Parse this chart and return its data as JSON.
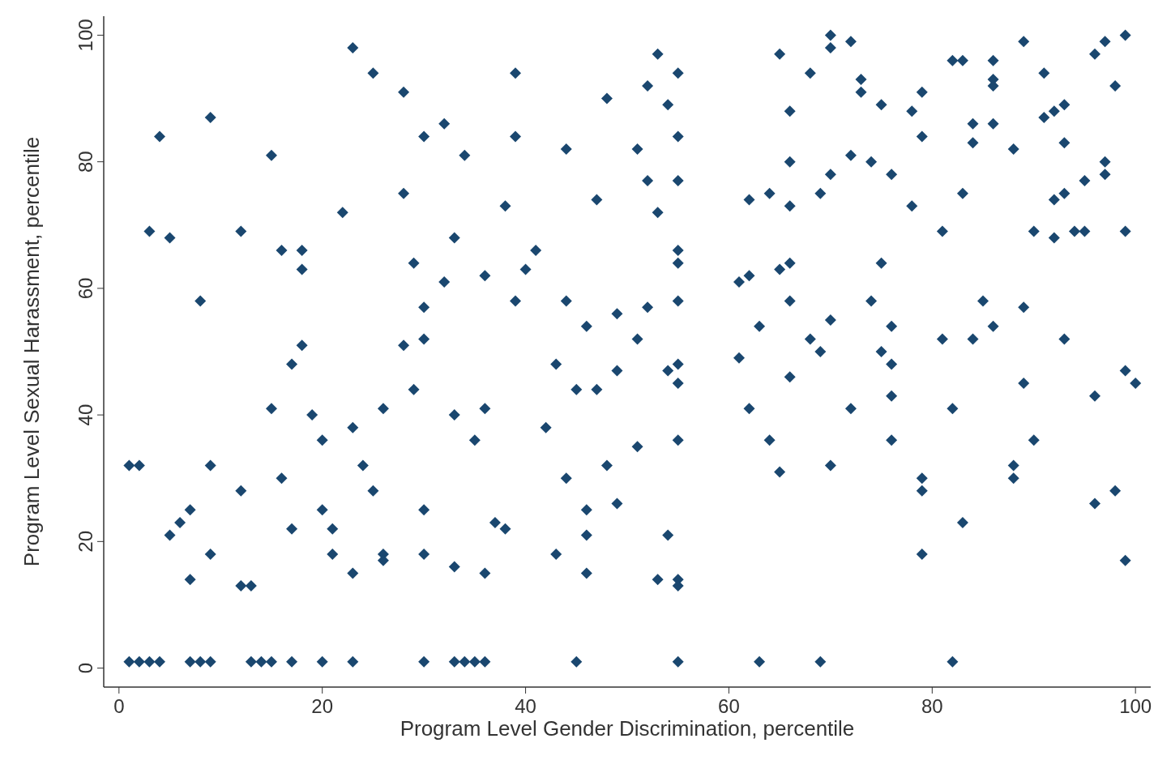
{
  "chart_data": {
    "type": "scatter",
    "xlabel": "Program Level Gender Discrimination, percentile",
    "ylabel": "Program Level Sexual Harassment, percentile",
    "xlim": [
      -1.5,
      101.5
    ],
    "ylim": [
      -3,
      103
    ],
    "xticks": [
      0,
      20,
      40,
      60,
      80,
      100
    ],
    "yticks": [
      0,
      20,
      40,
      60,
      80,
      100
    ],
    "grid": false,
    "marker": "diamond",
    "series": [
      {
        "color": "#1a476f",
        "x": [
          1,
          2,
          3,
          4,
          7,
          8,
          9,
          13,
          14,
          15,
          17,
          20,
          23,
          30,
          33,
          34,
          35,
          36,
          45,
          55,
          63,
          69,
          82,
          1,
          2,
          3,
          4,
          5,
          5,
          6,
          7,
          7,
          8,
          9,
          9,
          9,
          12,
          12,
          12,
          13,
          15,
          15,
          16,
          16,
          17,
          17,
          18,
          18,
          18,
          19,
          20,
          20,
          21,
          21,
          22,
          23,
          23,
          23,
          24,
          25,
          25,
          26,
          26,
          26,
          28,
          28,
          28,
          29,
          29,
          30,
          30,
          30,
          30,
          30,
          32,
          32,
          33,
          33,
          33,
          34,
          35,
          36,
          36,
          36,
          37,
          38,
          38,
          39,
          39,
          39,
          40,
          41,
          42,
          43,
          43,
          44,
          44,
          44,
          45,
          46,
          46,
          46,
          46,
          47,
          47,
          48,
          48,
          49,
          49,
          49,
          51,
          51,
          51,
          52,
          52,
          52,
          53,
          53,
          53,
          54,
          54,
          54,
          55,
          55,
          55,
          55,
          55,
          55,
          55,
          55,
          55,
          55,
          55,
          61,
          62,
          61,
          62,
          62,
          63,
          64,
          64,
          65,
          65,
          65,
          66,
          66,
          66,
          66,
          66,
          66,
          68,
          68,
          69,
          69,
          70,
          70,
          70,
          70,
          70,
          72,
          72,
          72,
          73,
          73,
          74,
          75,
          75,
          75,
          74,
          76,
          76,
          76,
          76,
          76,
          78,
          78,
          79,
          79,
          79,
          79,
          79,
          81,
          81,
          82,
          82,
          83,
          83,
          83,
          84,
          84,
          84,
          85,
          86,
          86,
          86,
          86,
          86,
          88,
          88,
          88,
          89,
          89,
          89,
          90,
          90,
          91,
          91,
          92,
          92,
          92,
          93,
          93,
          93,
          93,
          94,
          95,
          95,
          96,
          96,
          96,
          97,
          97,
          97,
          98,
          98,
          99,
          99,
          99,
          99,
          100
        ],
        "values": [
          1,
          1,
          1,
          1,
          1,
          1,
          1,
          1,
          1,
          1,
          1,
          1,
          1,
          1,
          1,
          1,
          1,
          1,
          1,
          1,
          1,
          1,
          1,
          32,
          32,
          69,
          84,
          21,
          68,
          23,
          25,
          14,
          58,
          87,
          32,
          18,
          28,
          69,
          13,
          13,
          81,
          41,
          30,
          66,
          48,
          22,
          66,
          63,
          51,
          40,
          36,
          25,
          22,
          18,
          72,
          98,
          38,
          15,
          32,
          94,
          28,
          41,
          18,
          17,
          91,
          75,
          51,
          64,
          44,
          84,
          57,
          52,
          25,
          18,
          86,
          61,
          68,
          40,
          16,
          81,
          36,
          62,
          41,
          15,
          23,
          22,
          73,
          94,
          84,
          58,
          63,
          66,
          38,
          48,
          18,
          82,
          58,
          30,
          44,
          54,
          25,
          21,
          15,
          74,
          44,
          90,
          32,
          56,
          47,
          26,
          82,
          52,
          35,
          92,
          77,
          57,
          97,
          72,
          14,
          89,
          47,
          21,
          94,
          84,
          77,
          66,
          64,
          58,
          48,
          45,
          36,
          14,
          13,
          61,
          62,
          49,
          41,
          74,
          54,
          75,
          36,
          97,
          31,
          63,
          64,
          88,
          80,
          73,
          58,
          46,
          94,
          52,
          75,
          50,
          100,
          98,
          78,
          55,
          32,
          99,
          81,
          41,
          93,
          91,
          80,
          89,
          64,
          50,
          58,
          78,
          54,
          48,
          43,
          36,
          88,
          73,
          91,
          84,
          30,
          28,
          18,
          69,
          52,
          41,
          96,
          96,
          75,
          23,
          86,
          83,
          52,
          58,
          96,
          93,
          92,
          86,
          54,
          82,
          32,
          30,
          99,
          57,
          45,
          69,
          36,
          94,
          87,
          88,
          74,
          68,
          89,
          83,
          75,
          52,
          69,
          69,
          77,
          97,
          43,
          26,
          99,
          80,
          78,
          92,
          28,
          100,
          69,
          47,
          17,
          45
        ]
      }
    ]
  }
}
